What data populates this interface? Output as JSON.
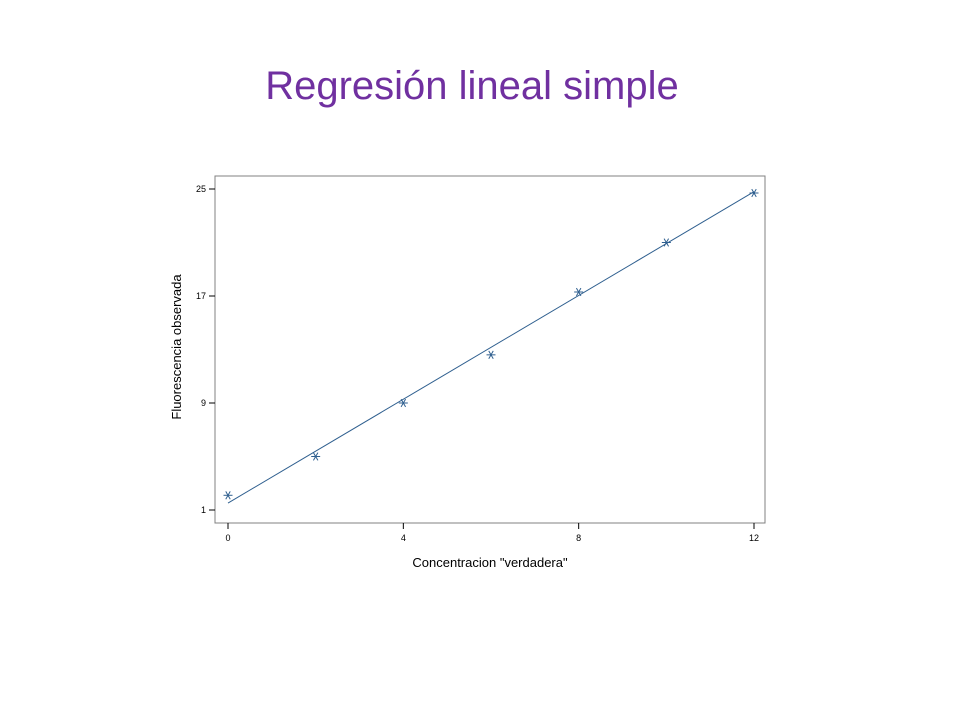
{
  "slide": {
    "title": "Regresión lineal simple"
  },
  "colors": {
    "title": "#7030a0",
    "series": "#2f5f8f",
    "frame": "#808080"
  },
  "chart_data": {
    "type": "scatter",
    "title": "",
    "xlabel": "Concentracion \"verdadera\"",
    "ylabel": "Fluorescencia observada",
    "xlim": [
      0,
      12
    ],
    "ylim": [
      1,
      25
    ],
    "x_ticks": [
      0,
      4,
      8,
      12
    ],
    "y_ticks": [
      1,
      9,
      17,
      25
    ],
    "grid": false,
    "legend": "none",
    "marker": "asterisk",
    "series": [
      {
        "x": [
          0,
          2,
          4,
          6,
          8,
          10,
          12
        ],
        "y": [
          2.1,
          5.0,
          9.0,
          12.6,
          17.3,
          21.0,
          24.7
        ]
      }
    ],
    "regression_line": {
      "x": [
        0,
        12
      ],
      "y": [
        1.52,
        24.8
      ]
    }
  }
}
